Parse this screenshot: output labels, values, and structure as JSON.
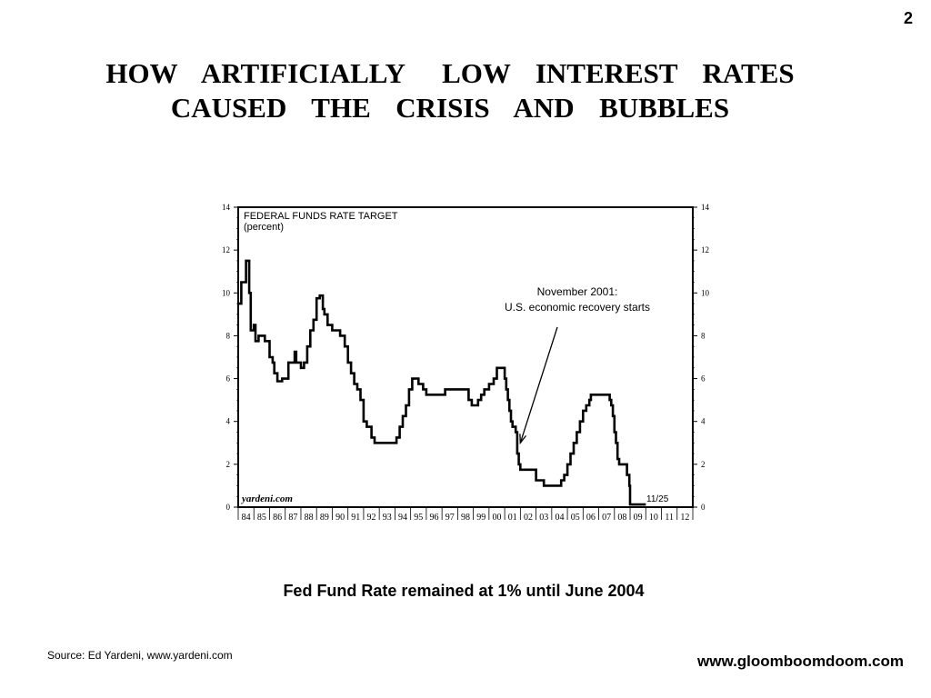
{
  "page_number": "2",
  "title_line1": "HOW  ARTIFICIALLY   LOW  INTEREST  RATES",
  "title_line2": "CAUSED  THE  CRISIS  AND  BUBBLES",
  "caption": "Fed Fund Rate remained at 1% until June 2004",
  "source": "Source: Ed Yardeni, www.yardeni.com",
  "website": "www.gloomboomdoom.com",
  "chart_data": {
    "type": "line",
    "title": "FEDERAL FUNDS RATE TARGET",
    "subtitle": "(percent)",
    "watermark": "yardeni.com",
    "end_label": "11/25",
    "annotation": {
      "line1": "November 2001:",
      "line2": "U.S. economic recovery starts",
      "x": 2002.0,
      "y": 3.0
    },
    "xlim": [
      1984,
      2013
    ],
    "ylim": [
      0,
      14
    ],
    "y_ticks": [
      0,
      2,
      4,
      6,
      8,
      10,
      12,
      14
    ],
    "x_tick_labels": [
      "84",
      "85",
      "86",
      "87",
      "88",
      "89",
      "90",
      "91",
      "92",
      "93",
      "94",
      "95",
      "96",
      "97",
      "98",
      "99",
      "00",
      "01",
      "02",
      "03",
      "04",
      "05",
      "06",
      "07",
      "08",
      "09",
      "10",
      "11",
      "12"
    ],
    "grid": false,
    "series": [
      {
        "x": [
          1984.0,
          1984.2,
          1984.3,
          1984.5,
          1984.6,
          1984.7,
          1984.8,
          1985.0,
          1985.1,
          1985.3,
          1985.5,
          1985.7,
          1985.8,
          1986.0,
          1986.2,
          1986.3,
          1986.5,
          1986.7,
          1986.8,
          1987.0,
          1987.2,
          1987.4,
          1987.6,
          1987.7,
          1987.8,
          1988.0,
          1988.2,
          1988.4,
          1988.6,
          1988.8,
          1989.0,
          1989.2,
          1989.4,
          1989.5,
          1989.7,
          1990.0,
          1990.5,
          1990.8,
          1991.0,
          1991.2,
          1991.4,
          1991.6,
          1991.8,
          1992.0,
          1992.2,
          1992.5,
          1992.7,
          1993.0,
          1993.5,
          1994.0,
          1994.1,
          1994.3,
          1994.5,
          1994.7,
          1994.9,
          1995.1,
          1995.5,
          1995.8,
          1996.0,
          1996.5,
          1997.0,
          1997.2,
          1997.5,
          1998.0,
          1998.5,
          1998.7,
          1998.9,
          1999.0,
          1999.3,
          1999.5,
          1999.7,
          2000.0,
          2000.3,
          2000.5,
          2000.9,
          2001.0,
          2001.1,
          2001.2,
          2001.3,
          2001.4,
          2001.5,
          2001.7,
          2001.8,
          2001.9,
          2002.0,
          2002.5,
          2002.8,
          2003.0,
          2003.4,
          2003.5,
          2004.0,
          2004.5,
          2004.6,
          2004.8,
          2005.0,
          2005.2,
          2005.4,
          2005.6,
          2005.8,
          2006.0,
          2006.2,
          2006.4,
          2006.5,
          2007.0,
          2007.6,
          2007.7,
          2007.8,
          2007.9,
          2008.0,
          2008.1,
          2008.2,
          2008.3,
          2008.6,
          2008.8,
          2008.95,
          2009.0,
          2009.5,
          2010.0
        ],
        "y": [
          9.5,
          10.5,
          10.5,
          11.5,
          11.5,
          10.0,
          8.25,
          8.5,
          7.75,
          8.0,
          8.0,
          7.75,
          7.75,
          7.0,
          6.75,
          6.25,
          5.875,
          5.875,
          6.0,
          6.0,
          6.75,
          6.75,
          7.25,
          6.75,
          6.75,
          6.5,
          6.75,
          7.5,
          8.25,
          8.75,
          9.75,
          9.875,
          9.25,
          9.0,
          8.5,
          8.25,
          8.0,
          7.5,
          6.75,
          6.25,
          5.75,
          5.5,
          5.0,
          4.0,
          3.75,
          3.25,
          3.0,
          3.0,
          3.0,
          3.0,
          3.25,
          3.75,
          4.25,
          4.75,
          5.5,
          6.0,
          5.75,
          5.5,
          5.25,
          5.25,
          5.25,
          5.5,
          5.5,
          5.5,
          5.5,
          5.0,
          4.75,
          4.75,
          5.0,
          5.25,
          5.5,
          5.75,
          6.0,
          6.5,
          6.5,
          6.0,
          5.5,
          5.0,
          4.5,
          4.0,
          3.75,
          3.5,
          2.5,
          2.0,
          1.75,
          1.75,
          1.75,
          1.25,
          1.25,
          1.0,
          1.0,
          1.0,
          1.25,
          1.5,
          2.0,
          2.5,
          3.0,
          3.5,
          4.0,
          4.5,
          4.75,
          5.0,
          5.25,
          5.25,
          5.25,
          5.0,
          4.75,
          4.25,
          3.5,
          3.0,
          2.25,
          2.0,
          2.0,
          1.5,
          1.0,
          0.125,
          0.125,
          0.125
        ]
      }
    ]
  }
}
